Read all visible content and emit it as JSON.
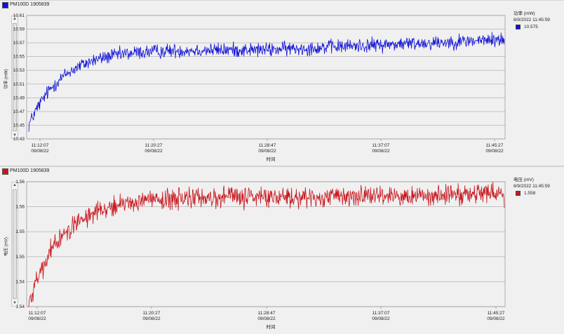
{
  "panels": [
    {
      "header_title": "PM100D 1905839",
      "legend_title": "功率 (mW)",
      "legend_timestamp": "8/9/2022 11:45:59",
      "legend_value": "10.575",
      "color": "#1010d8",
      "scroll_up": "▲",
      "scroll_down": "▼"
    },
    {
      "header_title": "PM100D 1905839",
      "legend_title": "电压 (mV)",
      "legend_timestamp": "8/9/2022 11:45:59",
      "legend_value": "1.558",
      "color": "#c8161d",
      "scroll_up": "▲",
      "scroll_down": "▼"
    }
  ],
  "chart_data": [
    {
      "type": "line",
      "ylabel": "功率 (mW)",
      "xlabel": "时间",
      "ylim": [
        10.43,
        10.61
      ],
      "yticks": [
        "10.61",
        "10.59",
        "10.57",
        "10.55",
        "10.53",
        "10.51",
        "10.49",
        "10.47",
        "10.45",
        "10.43"
      ],
      "xticks": [
        {
          "time": "11:12:07",
          "date": "09/08/22"
        },
        {
          "time": "11:20:27",
          "date": "09/08/22"
        },
        {
          "time": "11:28:47",
          "date": "09/08/22"
        },
        {
          "time": "11:37:07",
          "date": "09/08/22"
        },
        {
          "time": "11:45:27",
          "date": "09/08/22"
        }
      ],
      "grid": true,
      "series": [
        {
          "color": "#1010d8",
          "x_start": "11:12:07",
          "x_end": "11:45:59",
          "start_value": 10.45,
          "plateau_value": 10.56,
          "end_value": 10.575,
          "noise": 0.008
        }
      ]
    },
    {
      "type": "line",
      "ylabel": "电压 (mV)",
      "xlabel": "时间",
      "ylim": [
        1.54,
        1.56
      ],
      "yticks": [
        "1.56",
        "1.56",
        "1.55",
        "1.55",
        "1.54",
        "1.54"
      ],
      "xticks": [
        {
          "time": "11:12:07",
          "date": "09/08/22"
        },
        {
          "time": "11:20:27",
          "date": "09/08/22"
        },
        {
          "time": "11:28:47",
          "date": "09/08/22"
        },
        {
          "time": "11:37:07",
          "date": "09/08/22"
        },
        {
          "time": "11:45:27",
          "date": "09/08/22"
        }
      ],
      "grid": true,
      "series": [
        {
          "color": "#c8161d",
          "x_start": "11:12:07",
          "x_end": "11:45:59",
          "start_value": 1.5405,
          "plateau_value": 1.5575,
          "end_value": 1.558,
          "noise": 0.0012
        }
      ]
    }
  ]
}
